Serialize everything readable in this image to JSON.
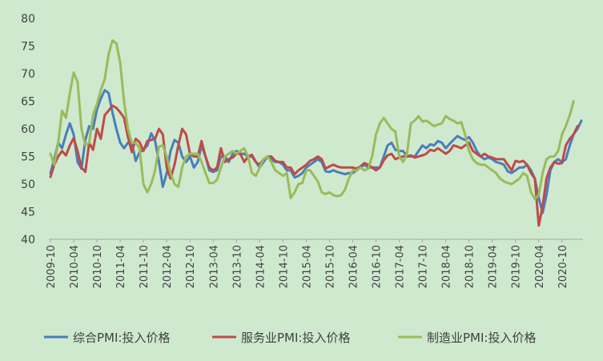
{
  "chart_data": {
    "type": "line",
    "title": "",
    "xlabel": "",
    "ylabel": "",
    "ylim": [
      40,
      80
    ],
    "yticks": [
      40,
      45,
      50,
      55,
      60,
      65,
      70,
      75,
      80
    ],
    "x_start": "2009-10",
    "x_tick_labels": [
      "2009-10",
      "2010-04",
      "2010-10",
      "2011-04",
      "2011-10",
      "2012-04",
      "2012-10",
      "2013-04",
      "2013-10",
      "2014-04",
      "2014-10",
      "2015-04",
      "2015-10",
      "2016-04",
      "2016-10",
      "2017-04",
      "2017-10",
      "2018-04",
      "2018-10",
      "2019-04",
      "2019-10",
      "2020-04",
      "2020-10"
    ],
    "grid": false,
    "legend_position": "bottom",
    "series": [
      {
        "name": "综合PMI:投入价格",
        "color": "#4a7ebb",
        "values": [
          52,
          54.5,
          57.5,
          56.5,
          59,
          61,
          59,
          54,
          52.8,
          58,
          60.5,
          60,
          63.5,
          65.5,
          67,
          66.5,
          63,
          60,
          57.5,
          56.5,
          57.5,
          57.5,
          54.2,
          55.8,
          56.2,
          57,
          59.2,
          57.8,
          54,
          49.5,
          52,
          56,
          58,
          57.5,
          55,
          54,
          55,
          53,
          54,
          57,
          55,
          52.5,
          52.2,
          52.5,
          55,
          55,
          54,
          55.5,
          56,
          55.5,
          55.5,
          55,
          55,
          54,
          53,
          54,
          55,
          54.5,
          54,
          54,
          53.5,
          52.5,
          52.5,
          51.2,
          51.5,
          52,
          53,
          53.5,
          54,
          54.5,
          54,
          52.3,
          52.2,
          52.5,
          52.2,
          52,
          51.8,
          52,
          52,
          52.5,
          53,
          53.5,
          53,
          53,
          53,
          53,
          55,
          57,
          57.5,
          56.2,
          56,
          56,
          55,
          55,
          55,
          56,
          57,
          56.5,
          57.2,
          57,
          57.8,
          57.5,
          56.5,
          57.3,
          58,
          58.7,
          58.3,
          58,
          58.5,
          57.5,
          56,
          55,
          54.5,
          54.8,
          54.5,
          54,
          53.8,
          53.5,
          52.3,
          52,
          52.5,
          53,
          53,
          53.5,
          52.5,
          51,
          47.5,
          44.8,
          48,
          52.5,
          54,
          54.5,
          54,
          54.5,
          57,
          59,
          60,
          61.5
        ]
      },
      {
        "name": "服务业PMI:投入价格",
        "color": "#be4b48",
        "values": [
          51.3,
          53.5,
          55,
          56,
          55.2,
          57,
          58.3,
          56,
          53,
          52.2,
          57.5,
          56.2,
          60,
          58.2,
          62.5,
          63.3,
          64.2,
          63.8,
          63,
          62,
          58.5,
          55.8,
          58.2,
          57.6,
          56,
          57.8,
          58,
          58.2,
          60,
          59,
          53,
          51,
          53.5,
          57,
          60,
          59,
          55.5,
          55,
          55,
          57.8,
          55,
          53,
          52.5,
          53,
          56.5,
          54,
          54.5,
          54.8,
          55.5,
          55.5,
          54,
          55,
          55.3,
          54,
          53.5,
          54.5,
          55,
          55,
          54.2,
          54,
          54,
          53,
          53,
          51.8,
          52.5,
          53,
          53.5,
          54.2,
          54.5,
          55,
          54.5,
          52.8,
          53.2,
          53.5,
          53.2,
          53,
          53,
          53,
          53,
          52.8,
          53.2,
          53.8,
          53.5,
          53,
          52.5,
          53,
          54.3,
          55.2,
          55.5,
          54.5,
          54.8,
          55,
          55,
          55.2,
          54.8,
          55,
          55.2,
          55.5,
          56.2,
          56,
          56.5,
          56,
          55.5,
          56,
          57,
          56.8,
          56.5,
          57,
          57.5,
          56,
          55.5,
          55,
          55.5,
          55,
          54.8,
          54.5,
          54.5,
          54.5,
          53.5,
          52.5,
          54.2,
          54,
          54.2,
          53.5,
          52,
          51,
          42.5,
          46,
          51,
          53,
          54,
          53.7,
          53.8,
          57,
          58.2,
          59,
          60.5
        ]
      },
      {
        "name": "制造业PMI:投入价格",
        "color": "#9bbb59",
        "values": [
          55.5,
          53.5,
          57.5,
          63.3,
          62,
          66.5,
          70.2,
          68.5,
          60,
          57,
          57.5,
          62.5,
          64.5,
          67,
          69,
          73.5,
          76,
          75.5,
          72,
          65,
          60,
          57.5,
          57.5,
          56.5,
          50,
          48.5,
          50,
          52.5,
          56.8,
          57,
          55,
          52,
          50,
          49.5,
          53,
          55,
          55.5,
          55.5,
          55.5,
          54,
          52,
          50.2,
          50.2,
          50.8,
          53,
          55,
          55.5,
          56,
          55.5,
          56,
          56.5,
          55,
          52,
          51.5,
          53,
          54.5,
          55,
          54,
          52.5,
          52,
          51.5,
          52,
          47.5,
          48.5,
          50,
          50.2,
          52.5,
          52.5,
          51.5,
          50.5,
          48.5,
          48.2,
          48.5,
          48,
          47.8,
          48,
          49,
          51,
          52.5,
          52.5,
          53,
          52.5,
          52.8,
          55,
          59,
          61,
          62,
          61,
          60,
          59.5,
          55,
          54,
          55.5,
          61,
          61.5,
          62.3,
          61.3,
          61.5,
          61,
          60.5,
          60.8,
          61,
          62.3,
          61.8,
          61.5,
          61,
          61.2,
          59,
          56,
          54.5,
          53.8,
          53.5,
          53.5,
          53,
          52.5,
          52,
          51,
          50.5,
          50.2,
          50,
          50.5,
          51,
          52,
          51.5,
          48.5,
          47.3,
          48,
          52,
          54.5,
          55,
          55,
          56,
          59,
          60.5,
          62.5,
          65
        ]
      }
    ]
  }
}
